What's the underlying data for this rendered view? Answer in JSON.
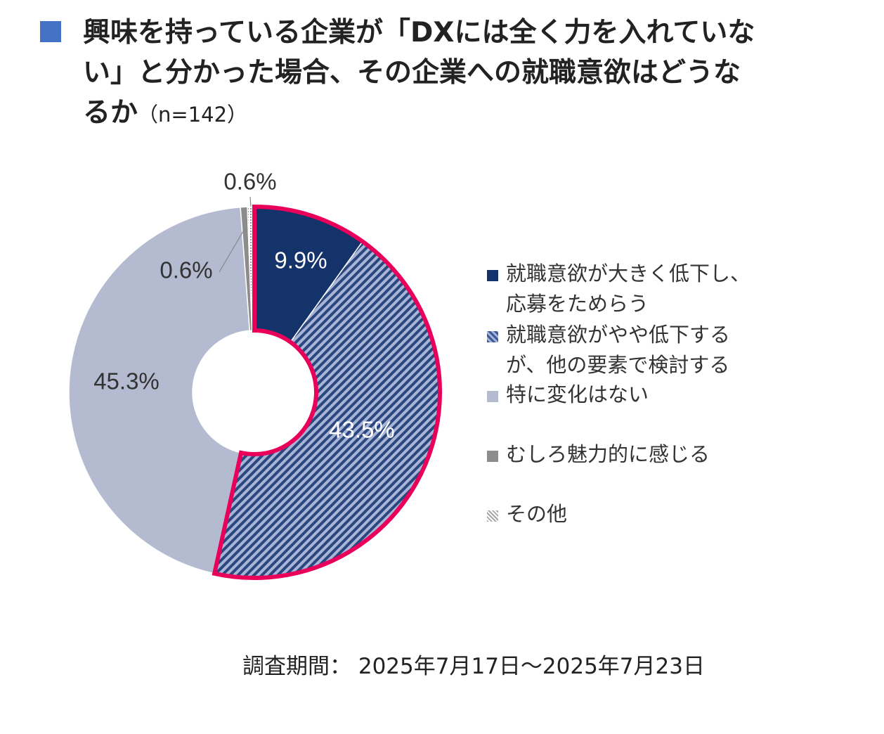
{
  "chart_data": {
    "type": "donut",
    "title": "興味を持っている企業が「DXには全く力を入れていない」と分かった場合、その企業への就職意欲はどうなるか",
    "sample_note": "（n=142）",
    "categories": [
      "就職意欲が大きく低下し、応募をためらう",
      "就職意欲がやや低下するが、他の要素で検討する",
      "特に変化はない",
      "むしろ魅力的に感じる",
      "その他"
    ],
    "values": [
      9.9,
      43.5,
      45.3,
      0.6,
      0.6
    ],
    "value_labels": [
      "9.9%",
      "43.5%",
      "45.3%",
      "0.6%",
      "0.6%"
    ],
    "colors": [
      "#14336b",
      "#3d5a99",
      "#b4bacf",
      "#8c8c8c",
      "#a6a6a6"
    ],
    "footnote": "調査期間： 2025年7月17日～2025年7月23日"
  }
}
